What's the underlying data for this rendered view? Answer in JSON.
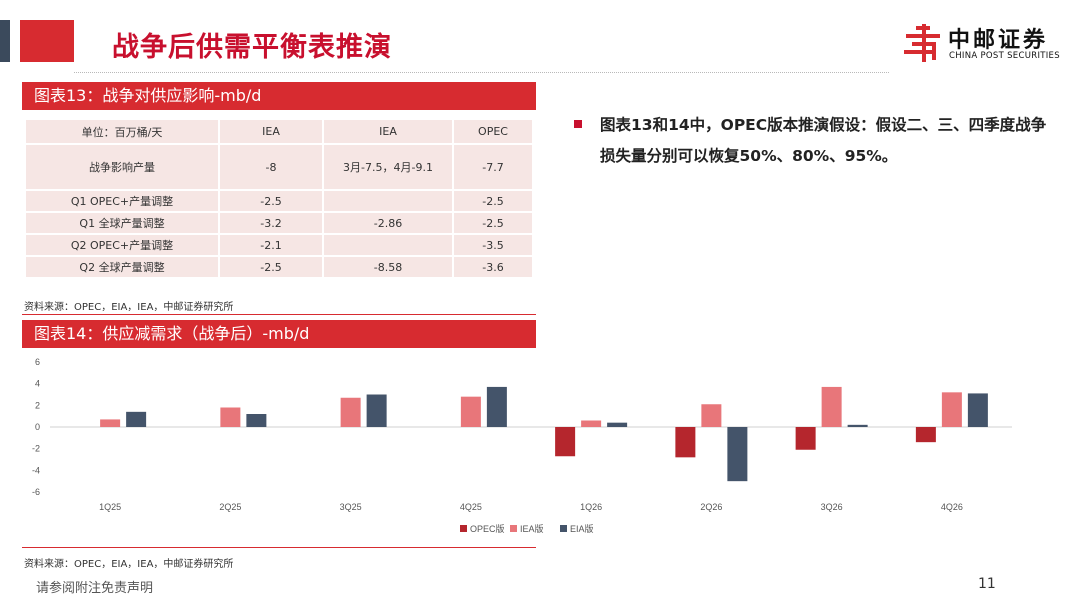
{
  "header": {
    "title": "战争后供需平衡表推演"
  },
  "logo": {
    "cn": "中邮证券",
    "en": "CHINA POST SECURITIES",
    "color": "#d72b30"
  },
  "table_section": {
    "title": "图表13：战争对供应影响-mb/d",
    "columns": [
      "单位：百万桶/天",
      "IEA",
      "IEA",
      "OPEC"
    ],
    "rows": [
      [
        "战争影响产量",
        "-8",
        "3月-7.5，4月-9.1",
        "-7.7"
      ],
      [
        "Q1 OPEC+产量调整",
        "-2.5",
        "",
        "-2.5"
      ],
      [
        "Q1 全球产量调整",
        "-3.2",
        "-2.86",
        "-2.5"
      ],
      [
        "Q2 OPEC+产量调整",
        "-2.1",
        "",
        "-3.5"
      ],
      [
        "Q2 全球产量调整",
        "-2.5",
        "-8.58",
        "-3.6"
      ]
    ],
    "source": "资料来源：OPEC，EIA，IEA，中邮证券研究所"
  },
  "chart_section": {
    "title": "图表14：供应减需求（战争后）-mb/d",
    "source": "资料来源：OPEC，EIA，IEA，中邮证券研究所"
  },
  "bullet": {
    "text": "图表13和14中，OPEC版本推演假设：假设二、三、四季度战争损失量分别可以恢复50%、80%、95%。"
  },
  "chart_data": {
    "type": "bar",
    "categories": [
      "1Q25",
      "2Q25",
      "3Q25",
      "4Q25",
      "1Q26",
      "2Q26",
      "3Q26",
      "4Q26"
    ],
    "series": [
      {
        "name": "OPEC版",
        "color": "#b5262d",
        "values": [
          0,
          0,
          0,
          0,
          -2.7,
          -2.8,
          -2.1,
          -1.4
        ]
      },
      {
        "name": "IEA版",
        "color": "#e8767a",
        "values": [
          0.7,
          1.8,
          2.7,
          2.8,
          0.6,
          2.1,
          3.7,
          3.2
        ]
      },
      {
        "name": "EIA版",
        "color": "#44546a",
        "values": [
          1.4,
          1.2,
          3.0,
          3.7,
          0.4,
          -5.0,
          0.2,
          3.1
        ]
      }
    ],
    "ylim": [
      -6,
      6
    ],
    "yticks": [
      6,
      4,
      2,
      0,
      -2,
      -4,
      -6
    ],
    "legend_position": "bottom-center",
    "grid": false
  },
  "footer": {
    "disclaimer": "请参阅附注免责声明",
    "page": "11"
  }
}
